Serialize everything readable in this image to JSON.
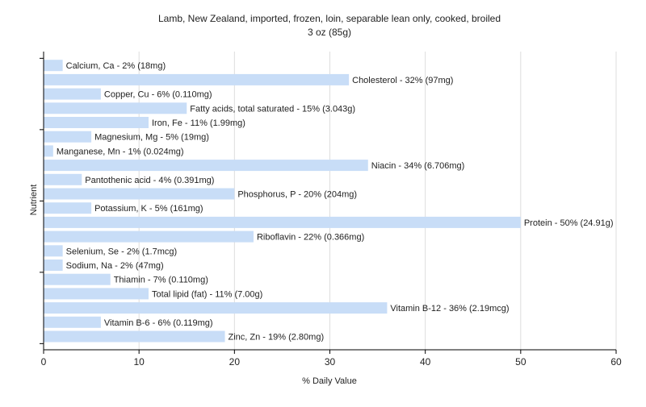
{
  "chart_data": {
    "type": "bar",
    "orientation": "horizontal",
    "title": "Lamb, New Zealand, imported, frozen, loin, separable lean only, cooked, broiled",
    "subtitle": "3 oz (85g)",
    "xlabel": "% Daily Value",
    "ylabel": "Nutrient",
    "xlim": [
      0,
      60
    ],
    "xticks": [
      0,
      10,
      20,
      30,
      40,
      50,
      60
    ],
    "grid": true,
    "legend": "none",
    "bar_color": "#c8ddf7",
    "grid_color": "#dddddd",
    "categories": [
      "Calcium, Ca",
      "Cholesterol",
      "Copper, Cu",
      "Fatty acids, total saturated",
      "Iron, Fe",
      "Magnesium, Mg",
      "Manganese, Mn",
      "Niacin",
      "Pantothenic acid",
      "Phosphorus, P",
      "Potassium, K",
      "Protein",
      "Riboflavin",
      "Selenium, Se",
      "Sodium, Na",
      "Thiamin",
      "Total lipid (fat)",
      "Vitamin B-12",
      "Vitamin B-6",
      "Zinc, Zn"
    ],
    "values": [
      2,
      32,
      6,
      15,
      11,
      5,
      1,
      34,
      4,
      20,
      5,
      50,
      22,
      2,
      2,
      7,
      11,
      36,
      6,
      19
    ],
    "labels": [
      "Calcium, Ca - 2% (18mg)",
      "Cholesterol - 32% (97mg)",
      "Copper, Cu - 6% (0.110mg)",
      "Fatty acids, total saturated - 15% (3.043g)",
      "Iron, Fe - 11% (1.99mg)",
      "Magnesium, Mg - 5% (19mg)",
      "Manganese, Mn - 1% (0.024mg)",
      "Niacin - 34% (6.706mg)",
      "Pantothenic acid - 4% (0.391mg)",
      "Phosphorus, P - 20% (204mg)",
      "Potassium, K - 5% (161mg)",
      "Protein - 50% (24.91g)",
      "Riboflavin - 22% (0.366mg)",
      "Selenium, Se - 2% (1.7mcg)",
      "Sodium, Na - 2% (47mg)",
      "Thiamin - 7% (0.110mg)",
      "Total lipid (fat) - 11% (7.00g)",
      "Vitamin B-12 - 36% (2.19mcg)",
      "Vitamin B-6 - 6% (0.119mg)",
      "Zinc, Zn - 19% (2.80mg)"
    ]
  }
}
